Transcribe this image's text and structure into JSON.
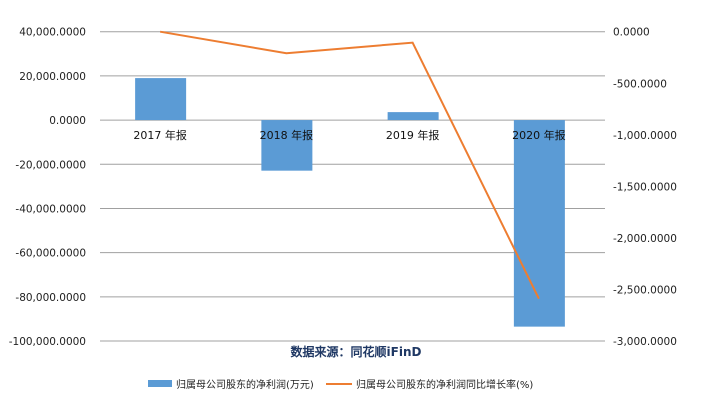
{
  "chart_data": {
    "type": "bar+line",
    "categories": [
      "2017 年报",
      "2018 年报",
      "2019 年报",
      "2020 年报"
    ],
    "series": [
      {
        "name": "归属母公司股东的净利润(万元)",
        "type": "bar",
        "axis": "left",
        "color": "#5b9bd5",
        "values": [
          19000,
          -22900,
          3600,
          -93500
        ]
      },
      {
        "name": "归属母公司股东的净利润同比增长率(%)",
        "type": "line",
        "axis": "right",
        "color": "#ed7d31",
        "values": [
          0,
          -209,
          -106,
          -2590
        ]
      }
    ],
    "left_axis": {
      "range": [
        -100000,
        40000
      ],
      "step": 20000,
      "ticks": [
        "40,000.0000",
        "20,000.0000",
        "0.0000",
        "-20,000.0000",
        "-40,000.0000",
        "-60,000.0000",
        "-80,000.0000",
        "-100,000.0000"
      ]
    },
    "right_axis": {
      "range": [
        -3000,
        0
      ],
      "step": 500,
      "ticks": [
        "0.0000",
        "-500.0000",
        "-1,000.0000",
        "-1,500.0000",
        "-2,000.0000",
        "-2,500.0000",
        "-3,000.0000"
      ]
    },
    "source_note": "数据来源：同花顺iFinD",
    "grid": true,
    "legend_position": "bottom"
  }
}
